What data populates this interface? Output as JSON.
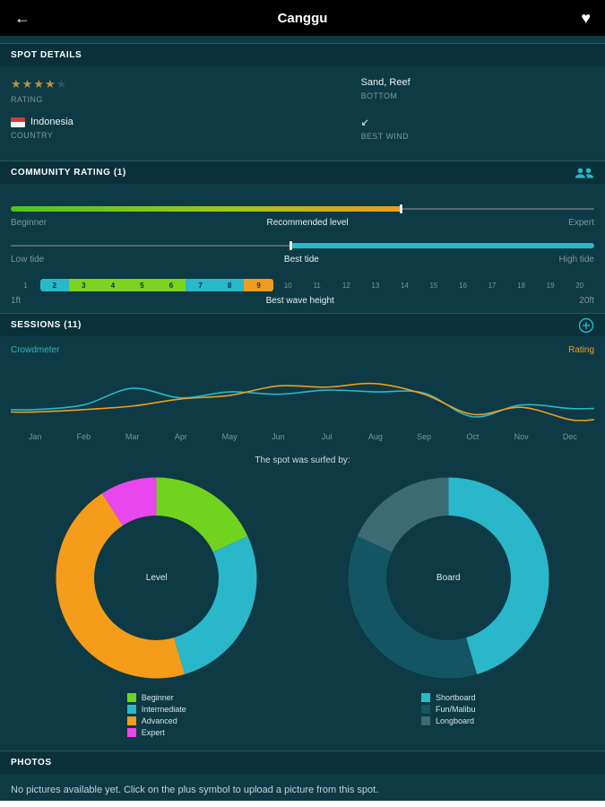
{
  "topbar": {
    "title": "Canggu",
    "back_icon": "←",
    "heart_icon": "♥"
  },
  "section_headers": {
    "spot_details": "SPOT DETAILS",
    "community_rating": "COMMUNITY RATING (1)",
    "sessions": "SESSIONS (11)",
    "photos": "PHOTOS"
  },
  "spot_details": {
    "rating": {
      "label": "RATING",
      "stars_filled": 4,
      "stars_total": 5
    },
    "bottom": {
      "value": "Sand, Reef",
      "label": "BOTTOM"
    },
    "country": {
      "value": "Indonesia",
      "label": "COUNTRY"
    },
    "best_wind": {
      "label": "BEST WIND",
      "arrow": "↙"
    }
  },
  "community": {
    "level_slider": {
      "left": "Beginner",
      "center": "Recommended level",
      "right": "Expert",
      "fill_percent": 67
    },
    "tide_slider": {
      "left": "Low tide",
      "center": "Best tide",
      "right": "High tide",
      "fill_start_percent": 48
    },
    "wave_scale": {
      "left": "1ft",
      "center": "Best wave height",
      "right": "20ft",
      "cells": [
        {
          "n": 1
        },
        {
          "n": 2,
          "color": "#2ab7c9"
        },
        {
          "n": 3,
          "color": "#7ed321"
        },
        {
          "n": 4,
          "color": "#7ed321"
        },
        {
          "n": 5,
          "color": "#7ed321"
        },
        {
          "n": 6,
          "color": "#7ed321"
        },
        {
          "n": 7,
          "color": "#2ab7c9"
        },
        {
          "n": 8,
          "color": "#2ab7c9"
        },
        {
          "n": 9,
          "color": "#f09c1e"
        },
        {
          "n": 10
        },
        {
          "n": 11
        },
        {
          "n": 12
        },
        {
          "n": 13
        },
        {
          "n": 14
        },
        {
          "n": 15
        },
        {
          "n": 16
        },
        {
          "n": 17
        },
        {
          "n": 18
        },
        {
          "n": 19
        },
        {
          "n": 20
        }
      ]
    }
  },
  "sessions": {
    "caption": "The spot was surfed by:"
  },
  "chart_data": [
    {
      "type": "line",
      "x": [
        "Jan",
        "Feb",
        "Mar",
        "Apr",
        "May",
        "Jun",
        "Jul",
        "Aug",
        "Sep",
        "Oct",
        "Nov",
        "Dec"
      ],
      "series": [
        {
          "name": "Crowdmeter",
          "color": "#2ab7c9",
          "values": [
            2.6,
            3.4,
            6.2,
            4.6,
            5.6,
            5.2,
            5.9,
            5.6,
            5.4,
            1.4,
            3.4,
            2.8
          ]
        },
        {
          "name": "Rating",
          "color": "#f09c1e",
          "values": [
            2.2,
            2.6,
            3.2,
            4.4,
            5.0,
            6.6,
            6.4,
            7.0,
            5.2,
            1.8,
            3.0,
            0.9
          ]
        }
      ],
      "ylim": [
        0,
        10
      ],
      "grid": false,
      "legend_position": "top"
    },
    {
      "type": "pie",
      "title": "Level",
      "labels": [
        "Beginner",
        "Intermediate",
        "Advanced",
        "Expert"
      ],
      "values": [
        2,
        3,
        5,
        1
      ],
      "colors": [
        "#72d31f",
        "#2ab7c9",
        "#f59c1b",
        "#e747ec"
      ],
      "hole": 0.62
    },
    {
      "type": "pie",
      "title": "Board",
      "labels": [
        "Shortboard",
        "Fun/Malibu",
        "Longboard"
      ],
      "values": [
        5,
        4,
        2
      ],
      "colors": [
        "#2ab7c9",
        "#145563",
        "#3c6b74"
      ],
      "hole": 0.62
    }
  ],
  "photos": {
    "empty_text": "No pictures available yet. Click on the plus symbol to upload a picture from this spot."
  }
}
